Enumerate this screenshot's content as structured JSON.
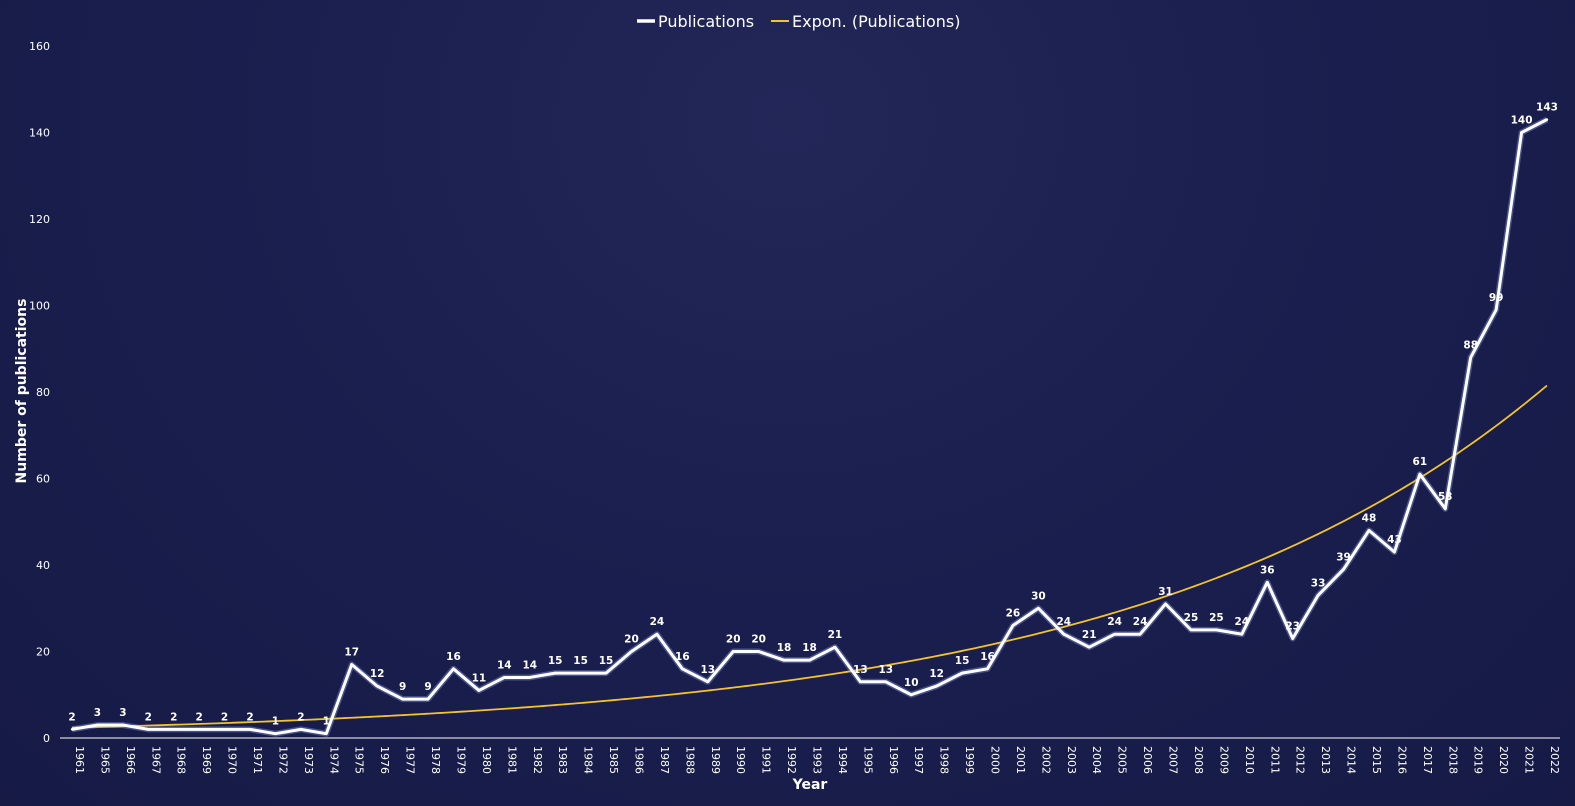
{
  "chart_data": {
    "type": "line",
    "xlabel": "Year",
    "ylabel": "Number of publications",
    "ylim": [
      0,
      160
    ],
    "yticks": [
      0,
      20,
      40,
      60,
      80,
      100,
      120,
      140,
      160
    ],
    "categories": [
      "1961",
      "1965",
      "1966",
      "1967",
      "1968",
      "1969",
      "1970",
      "1971",
      "1972",
      "1973",
      "1974",
      "1975",
      "1976",
      "1977",
      "1978",
      "1979",
      "1980",
      "1981",
      "1982",
      "1983",
      "1984",
      "1985",
      "1986",
      "1987",
      "1988",
      "1989",
      "1990",
      "1991",
      "1992",
      "1993",
      "1994",
      "1995",
      "1996",
      "1997",
      "1998",
      "1999",
      "2000",
      "2001",
      "2002",
      "2003",
      "2004",
      "2005",
      "2006",
      "2007",
      "2008",
      "2009",
      "2010",
      "2011",
      "2012",
      "2013",
      "2014",
      "2015",
      "2016",
      "2017",
      "2018",
      "2019",
      "2020",
      "2021",
      "2022"
    ],
    "series": [
      {
        "name": "Publications",
        "color": "#ffffff",
        "values": [
          2,
          3,
          3,
          2,
          2,
          2,
          2,
          2,
          1,
          2,
          1,
          17,
          12,
          9,
          9,
          16,
          11,
          14,
          14,
          15,
          15,
          15,
          20,
          24,
          16,
          13,
          20,
          20,
          18,
          18,
          21,
          13,
          13,
          10,
          12,
          15,
          16,
          26,
          30,
          24,
          21,
          24,
          24,
          31,
          25,
          25,
          24,
          36,
          23,
          33,
          39,
          48,
          43,
          61,
          53,
          88,
          99,
          140,
          143
        ]
      },
      {
        "name": "Expon. (Publications)",
        "color": "#f2c230",
        "trendline": "exponential",
        "start_value": 2.4,
        "end_value": 81.5
      }
    ],
    "legend_position": "top-center",
    "grid": false
  }
}
